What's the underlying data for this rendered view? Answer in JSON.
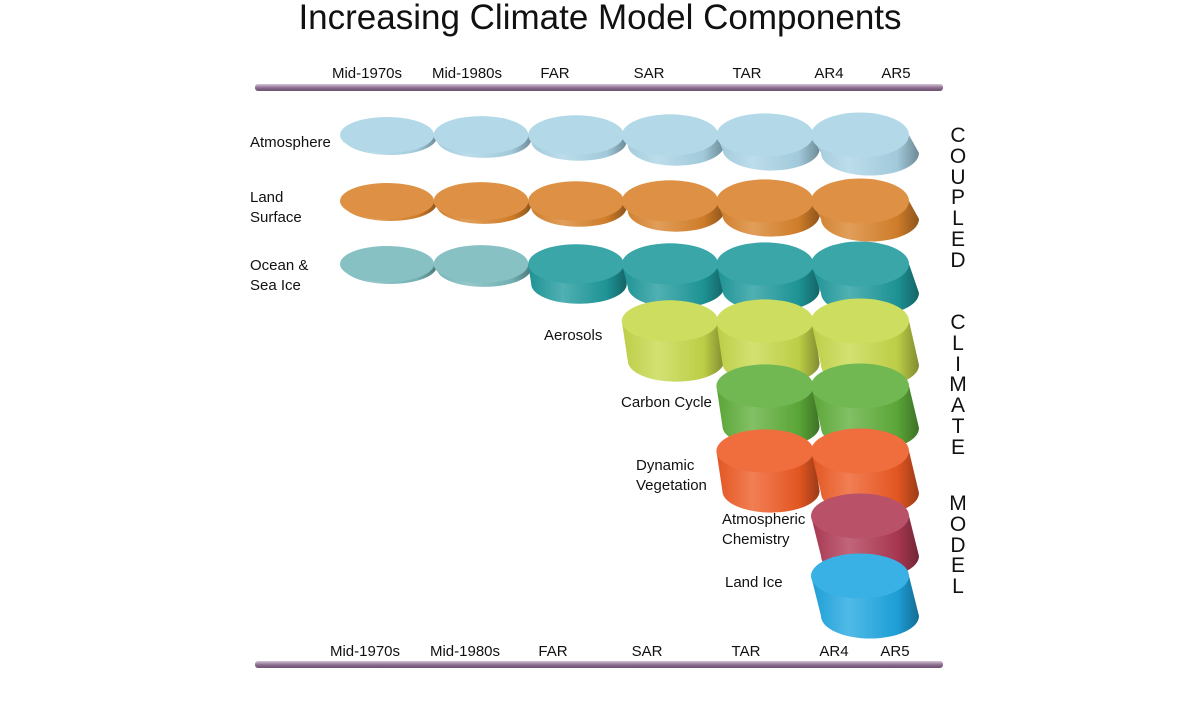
{
  "title": "Increasing Climate Model Components",
  "eras": [
    "Mid-1970s",
    "Mid-1980s",
    "FAR",
    "SAR",
    "TAR",
    "AR4",
    "AR5"
  ],
  "components": [
    {
      "label_lines": [
        "Atmosphere"
      ],
      "color": "#a9d4e5",
      "start_era": 0
    },
    {
      "label_lines": [
        "Land",
        "Surface"
      ],
      "color": "#d9822b",
      "start_era": 0
    },
    {
      "label_lines": [
        "Ocean &",
        "Sea Ice"
      ],
      "color": "#1f9a9c",
      "faded_color": "#78b8bc",
      "faded_until_era": 1,
      "start_era": 0
    },
    {
      "label_lines": [
        "Aerosols"
      ],
      "color": "#c6d84a",
      "start_era": 3
    },
    {
      "label_lines": [
        "Carbon Cycle"
      ],
      "color": "#5fae3a",
      "start_era": 4
    },
    {
      "label_lines": [
        "Dynamic",
        "Vegetation"
      ],
      "color": "#ee5a24",
      "start_era": 4
    },
    {
      "label_lines": [
        "Atmospheric",
        "Chemistry"
      ],
      "color": "#b03a55",
      "start_era": 5
    },
    {
      "label_lines": [
        "Land Ice"
      ],
      "color": "#1fa6e0",
      "start_era": 5
    }
  ],
  "side_words": [
    "COUPLED",
    "CLIMATE",
    "MODEL"
  ]
}
